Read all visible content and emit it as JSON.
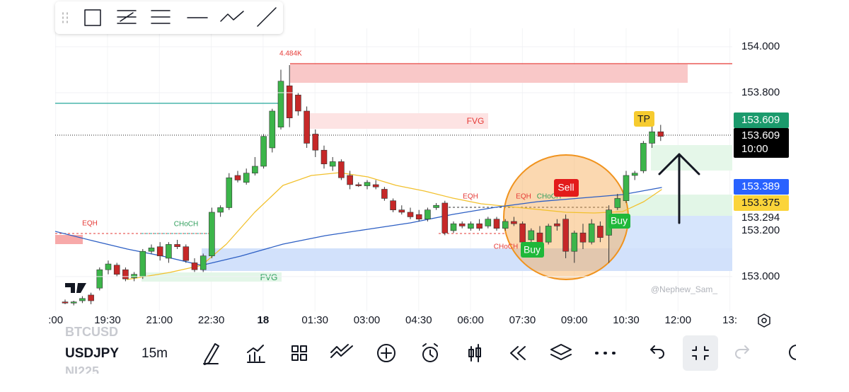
{
  "chart": {
    "type": "candlestick",
    "ylim": [
      152.849,
      154.08
    ],
    "yticks": [
      {
        "value": 154,
        "label": "154.000"
      },
      {
        "value": 153.8,
        "label": "153.800"
      },
      {
        "value": 153,
        "label": "153.000"
      }
    ],
    "xticks": [
      ":00",
      "19:30",
      "21:00",
      "22:30",
      "18",
      "01:30",
      "03:00",
      "04:30",
      "06:00",
      "07:30",
      "09:00",
      "10:30",
      "12:00",
      "13:"
    ],
    "up_color": "#3cb54a",
    "down_color": "#c62828",
    "candles": [
      [
        152.89,
        152.9,
        152.88,
        152.885
      ],
      [
        152.885,
        152.895,
        152.875,
        152.89
      ],
      [
        152.895,
        152.915,
        152.885,
        152.905
      ],
      [
        152.92,
        152.93,
        152.88,
        152.895
      ],
      [
        152.95,
        153.04,
        152.94,
        153.03
      ],
      [
        153.03,
        153.07,
        153.01,
        153.055
      ],
      [
        153.05,
        153.06,
        153.0,
        153.01
      ],
      [
        153.03,
        153.04,
        152.98,
        152.99
      ],
      [
        152.995,
        153.02,
        152.98,
        153.01
      ],
      [
        153.0,
        153.12,
        152.99,
        153.11
      ],
      [
        153.11,
        153.14,
        153.1,
        153.125
      ],
      [
        153.13,
        153.15,
        153.07,
        153.09
      ],
      [
        153.08,
        153.15,
        153.06,
        153.14
      ],
      [
        153.14,
        153.16,
        153.12,
        153.13
      ],
      [
        153.13,
        153.14,
        153.06,
        153.07
      ],
      [
        153.06,
        153.08,
        153.02,
        153.03
      ],
      [
        153.03,
        153.1,
        153.02,
        153.09
      ],
      [
        153.09,
        153.3,
        153.08,
        153.28
      ],
      [
        153.28,
        153.31,
        153.26,
        153.3
      ],
      [
        153.3,
        153.45,
        153.29,
        153.43
      ],
      [
        153.44,
        153.46,
        153.41,
        153.42
      ],
      [
        153.41,
        153.47,
        153.4,
        153.45
      ],
      [
        153.45,
        153.52,
        153.44,
        153.48
      ],
      [
        153.48,
        153.62,
        153.47,
        153.61
      ],
      [
        153.56,
        153.73,
        153.54,
        153.72
      ],
      [
        153.65,
        153.9,
        153.64,
        153.85
      ],
      [
        153.83,
        153.92,
        153.65,
        153.69
      ],
      [
        153.79,
        153.8,
        153.7,
        153.72
      ],
      [
        153.72,
        153.74,
        153.56,
        153.58
      ],
      [
        153.62,
        153.64,
        153.52,
        153.55
      ],
      [
        153.55,
        153.57,
        153.47,
        153.49
      ],
      [
        153.48,
        153.52,
        153.46,
        153.5
      ],
      [
        153.5,
        153.51,
        153.42,
        153.43
      ],
      [
        153.44,
        153.46,
        153.38,
        153.4
      ],
      [
        153.4,
        153.41,
        153.39,
        153.395
      ],
      [
        153.395,
        153.42,
        153.38,
        153.41
      ],
      [
        153.4,
        153.42,
        153.38,
        153.39
      ],
      [
        153.38,
        153.39,
        153.33,
        153.34
      ],
      [
        153.33,
        153.34,
        153.28,
        153.29
      ],
      [
        153.29,
        153.31,
        153.27,
        153.28
      ],
      [
        153.28,
        153.3,
        153.25,
        153.26
      ],
      [
        153.27,
        153.29,
        153.24,
        153.25
      ],
      [
        153.25,
        153.3,
        153.24,
        153.29
      ],
      [
        153.3,
        153.32,
        153.29,
        153.31
      ],
      [
        153.32,
        153.33,
        153.18,
        153.19
      ],
      [
        153.2,
        153.24,
        153.19,
        153.23
      ],
      [
        153.23,
        153.24,
        153.21,
        153.22
      ],
      [
        153.21,
        153.24,
        153.2,
        153.23
      ],
      [
        153.23,
        153.25,
        153.2,
        153.21
      ],
      [
        153.22,
        153.26,
        153.21,
        153.25
      ],
      [
        153.25,
        153.26,
        153.2,
        153.21
      ],
      [
        153.21,
        153.25,
        153.2,
        153.24
      ],
      [
        153.24,
        153.26,
        153.22,
        153.23
      ],
      [
        153.23,
        153.24,
        153.14,
        153.15
      ],
      [
        153.16,
        153.21,
        153.15,
        153.2
      ],
      [
        153.19,
        153.22,
        153.12,
        153.14
      ],
      [
        153.15,
        153.23,
        153.14,
        153.22
      ],
      [
        153.23,
        153.25,
        153.2,
        153.22
      ],
      [
        153.25,
        153.27,
        153.08,
        153.11
      ],
      [
        153.11,
        153.2,
        153.06,
        153.19
      ],
      [
        153.19,
        153.23,
        153.12,
        153.15
      ],
      [
        153.15,
        153.25,
        153.14,
        153.23
      ],
      [
        153.22,
        153.24,
        153.15,
        153.17
      ],
      [
        153.18,
        153.31,
        153.06,
        153.29
      ],
      [
        153.3,
        153.36,
        153.29,
        153.34
      ],
      [
        153.33,
        153.46,
        153.32,
        153.44
      ],
      [
        153.44,
        153.46,
        153.42,
        153.45
      ],
      [
        153.46,
        153.59,
        153.45,
        153.58
      ],
      [
        153.58,
        153.68,
        153.56,
        153.63
      ],
      [
        153.63,
        153.66,
        153.59,
        153.61
      ]
    ],
    "price_tags": [
      {
        "value": 153.609,
        "label": "153.609"
      },
      {
        "value": 153.609,
        "label": "153.609"
      },
      {
        "value": 153.389,
        "label": "153.389"
      },
      {
        "value": 153.375,
        "label": "153.375"
      },
      {
        "value": 153.294,
        "label": "153.294"
      },
      {
        "value": 153.2,
        "label": "153.200"
      }
    ],
    "countdown": "10:00",
    "annotations": {
      "volume": "4.484K",
      "fvg": [
        "FVG",
        "FVG"
      ],
      "eqh": [
        "EQH",
        "EQH",
        "EQH"
      ],
      "choch": [
        "CHoCH",
        "CHoCH",
        "CHoCH"
      ],
      "sell": "Sell",
      "buy": [
        "Buy",
        "Buy"
      ],
      "tp": "TP"
    },
    "watermark": "@Nephew_Sam_"
  },
  "bottom_bar": {
    "prev_symbol": "BTCUSD",
    "symbol": "USDJPY",
    "interval": "15m",
    "next_symbol": "NI225"
  }
}
